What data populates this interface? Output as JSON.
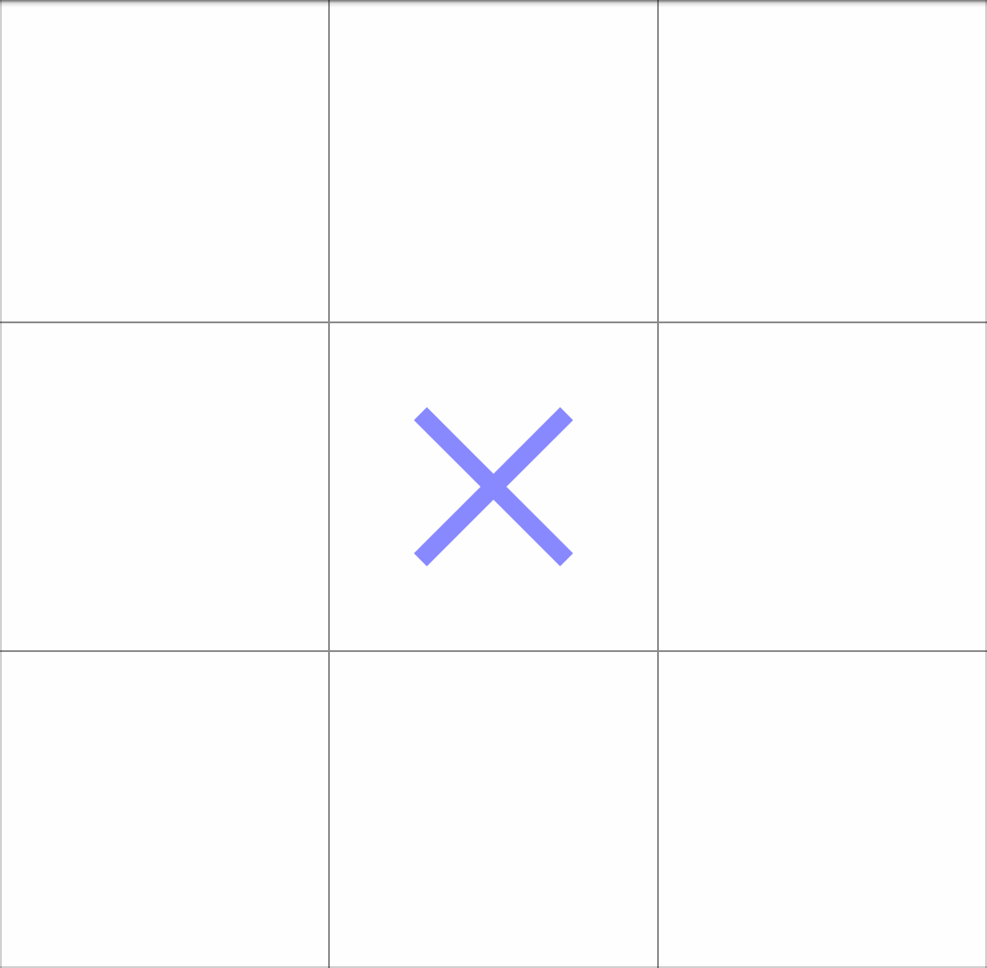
{
  "board": {
    "cells": [
      "",
      "",
      "",
      "",
      "X",
      "",
      "",
      "",
      ""
    ]
  },
  "colors": {
    "x_mark": "#8888ff",
    "grid_line": "#8c8c8c",
    "background": "#fefefe"
  }
}
